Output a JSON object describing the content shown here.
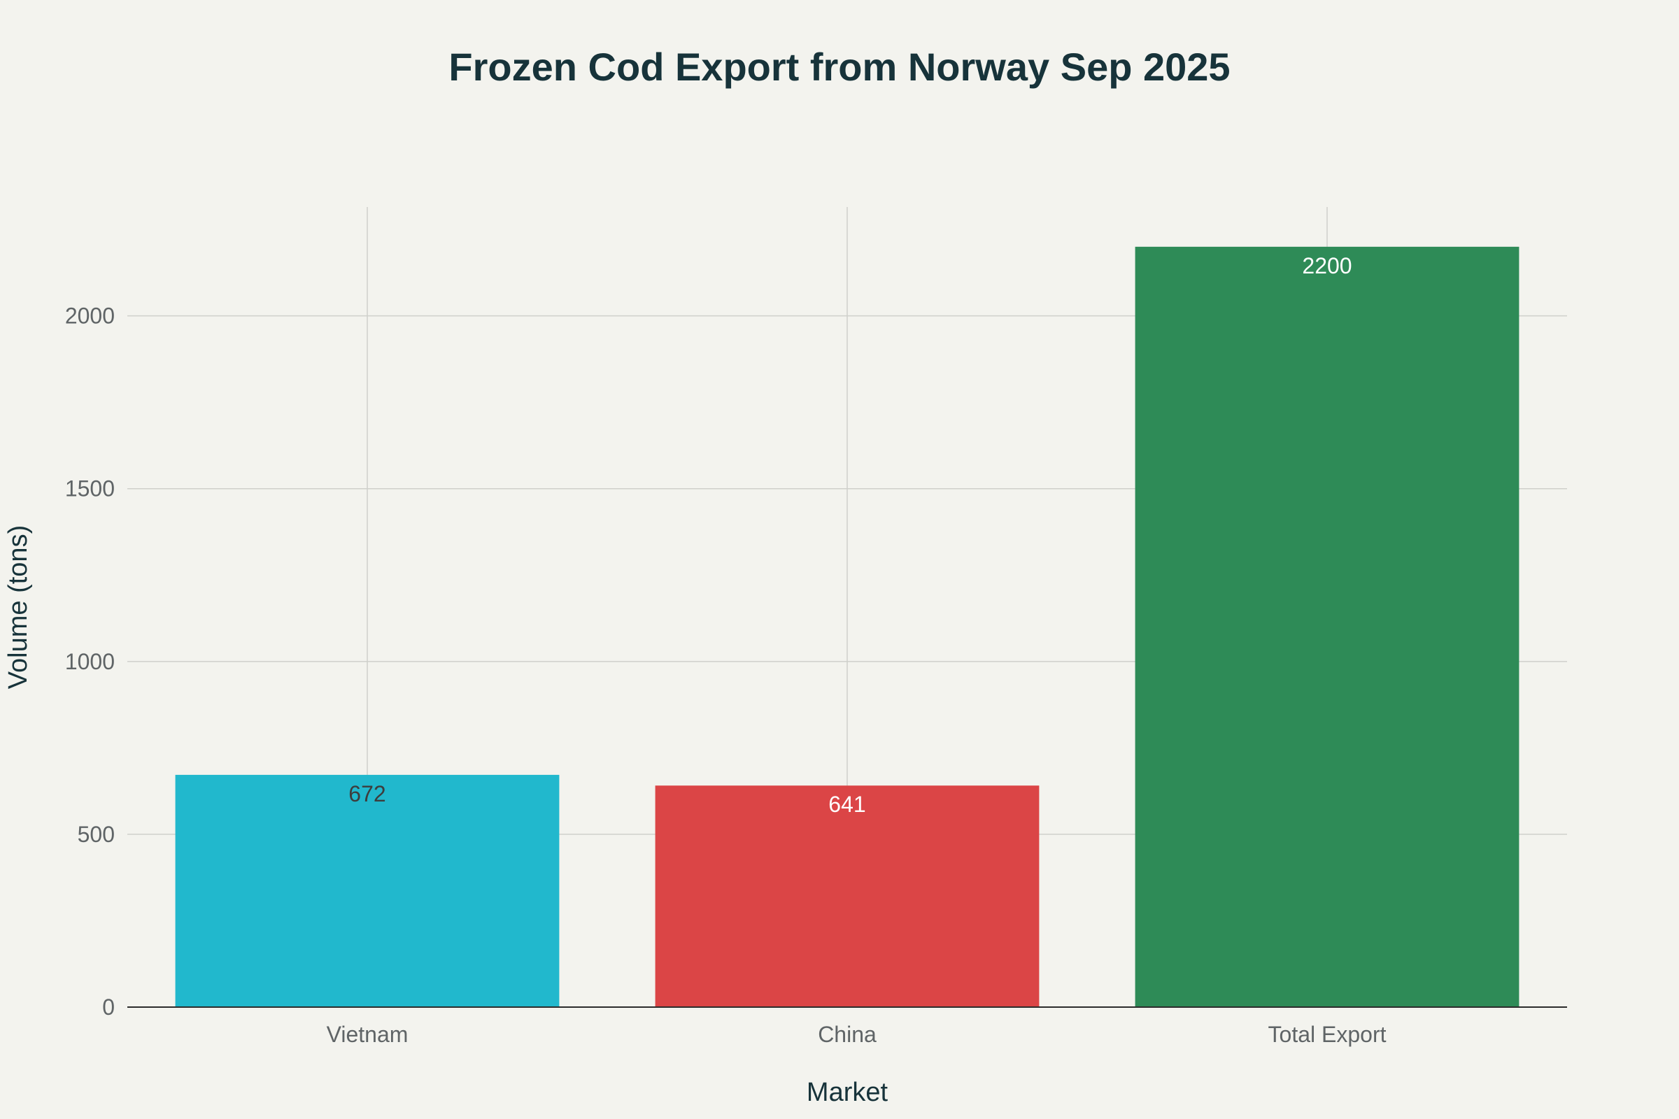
{
  "chart_data": {
    "type": "bar",
    "title": "Frozen Cod Export from Norway Sep 2025",
    "xlabel": "Market",
    "ylabel": "Volume (tons)",
    "categories": [
      "Vietnam",
      "China",
      "Total Export"
    ],
    "values": [
      672,
      641,
      2200
    ],
    "value_labels": [
      "672",
      "641",
      "2200"
    ],
    "colors": [
      "#21b8cd",
      "#db4546",
      "#2e8b57"
    ],
    "label_colors": [
      "#3d3d3d",
      "#ffffff",
      "#ffffff"
    ],
    "ylim": [
      0,
      2315
    ],
    "yticks": [
      0,
      500,
      1000,
      1500,
      2000
    ],
    "ytick_labels": [
      "0",
      "500",
      "1000",
      "1500",
      "2000"
    ],
    "grid": true,
    "legend": "none"
  }
}
